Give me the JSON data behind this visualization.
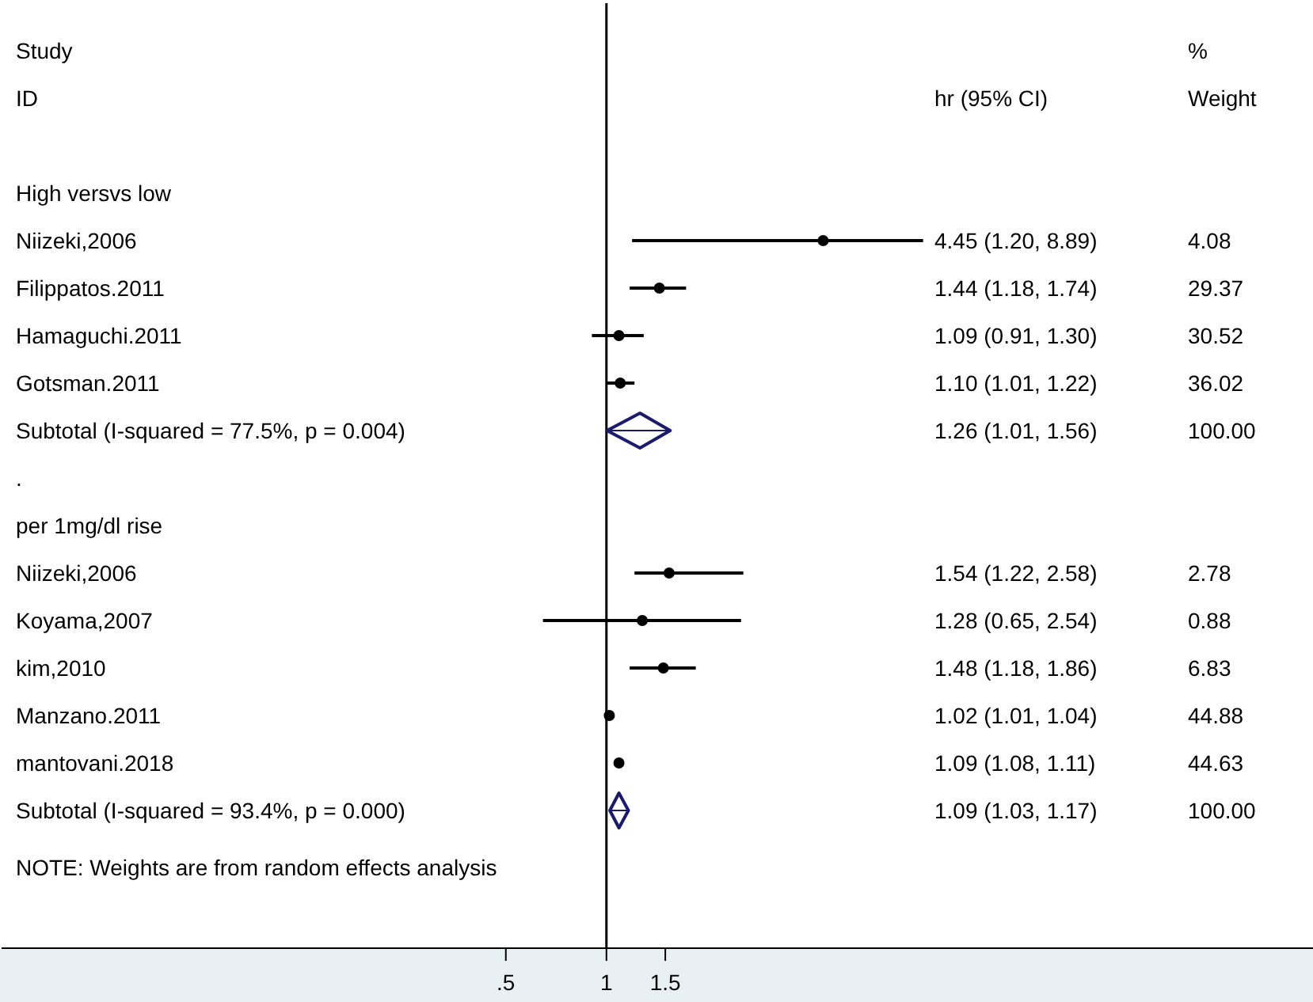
{
  "chart_data": {
    "type": "scatter",
    "categories": [
      "High versvs low",
      "Niizeki,2006",
      "Filippatos.2011",
      "Hamaguchi.2011",
      "Gotsman.2011",
      "Subtotal  (I-squared = 77.5%, p = 0.004)",
      ".",
      "per 1mg/dl rise",
      "Niizeki,2006",
      "Koyama,2007",
      "kim,2010",
      "Manzano.2011",
      "mantovani.2018",
      "Subtotal  (I-squared = 93.4%, p = 0.000)"
    ],
    "series": [
      {
        "type": "scatter",
        "marker": "circle",
        "color": "#000000",
        "values": [
          null,
          4.45,
          1.44,
          1.09,
          1.1,
          null,
          null,
          null,
          1.54,
          1.28,
          1.48,
          1.02,
          1.09,
          null
        ],
        "errors": [
          null,
          [
            1.2,
            8.89
          ],
          [
            1.18,
            1.74
          ],
          [
            0.91,
            1.3
          ],
          [
            1.01,
            1.22
          ],
          null,
          null,
          null,
          [
            1.22,
            2.58
          ],
          [
            0.65,
            2.54
          ],
          [
            1.18,
            1.86
          ],
          [
            1.01,
            1.04
          ],
          [
            1.08,
            1.11
          ],
          null
        ]
      },
      {
        "type": "scatter",
        "marker": "diamond",
        "color": "#1a1a6e",
        "values": [
          null,
          null,
          null,
          null,
          null,
          1.26,
          null,
          null,
          null,
          null,
          null,
          null,
          null,
          1.09
        ],
        "errors": [
          null,
          null,
          null,
          null,
          null,
          [
            1.01,
            1.56
          ],
          null,
          null,
          null,
          null,
          null,
          null,
          null,
          [
            1.03,
            1.17
          ]
        ]
      }
    ],
    "orientation": "horizontal",
    "log": "x",
    "xlim": [
      0.0155,
      130
    ],
    "xticks": [
      {
        "value": 0.5,
        "label": ".5"
      },
      {
        "value": 1,
        "label": "1"
      },
      {
        "value": 1.5,
        "label": "1.5"
      }
    ],
    "ref_lines": [
      {
        "axis": "x",
        "value": 1,
        "color": "#000000"
      }
    ],
    "annotations": [
      "Study",
      "ID",
      "hr (95% CI)",
      "%",
      "Weight",
      "4.45 (1.20, 8.89)",
      "1.44 (1.18, 1.74)",
      "1.09 (0.91, 1.30)",
      "1.10 (1.01, 1.22)",
      "1.26 (1.01, 1.56)",
      "1.54 (1.22, 2.58)",
      "1.28 (0.65, 2.54)",
      "1.48 (1.18, 1.86)",
      "1.02 (1.01, 1.04)",
      "1.09 (1.08, 1.11)",
      "1.09 (1.03, 1.17)",
      "4.08",
      "29.37",
      "30.52",
      "36.02",
      "100.00",
      "2.78",
      "0.88",
      "6.83",
      "44.88",
      "44.63",
      "100.00",
      "NOTE: Weights are from random effects analysis"
    ]
  }
}
